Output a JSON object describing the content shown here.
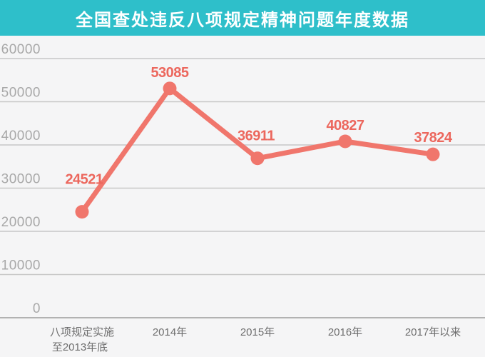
{
  "banner": {
    "title": "全国查处违反八项规定精神问题年度数据"
  },
  "colors": {
    "banner_background": "#2ebfca",
    "title_text": "#ffffff",
    "page_background": "#f5f5f6",
    "gridline": "#c7c7c7",
    "axis_line": "#b2b2b2",
    "y_tick_label": "#a8a8a8",
    "x_tick_label": "#6e6e6e",
    "line": "#f0766c",
    "point": "#f0766c",
    "data_label": "#ec675d"
  },
  "chart_data": {
    "type": "line",
    "title": "全国查处违反八项规定精神问题年度数据",
    "categories": [
      "八项规定实施\n至2013年底",
      "2014年",
      "2015年",
      "2016年",
      "2017年以来"
    ],
    "values": [
      24521,
      53085,
      36911,
      40827,
      37824
    ],
    "data_labels": [
      "24521",
      "53085",
      "36911",
      "40827",
      "37824"
    ],
    "y_ticks": [
      0,
      10000,
      20000,
      30000,
      40000,
      50000,
      60000
    ],
    "ylim": [
      0,
      60000
    ],
    "xlabel": "",
    "ylabel": "",
    "grid": "horizontal",
    "legend": "none"
  }
}
